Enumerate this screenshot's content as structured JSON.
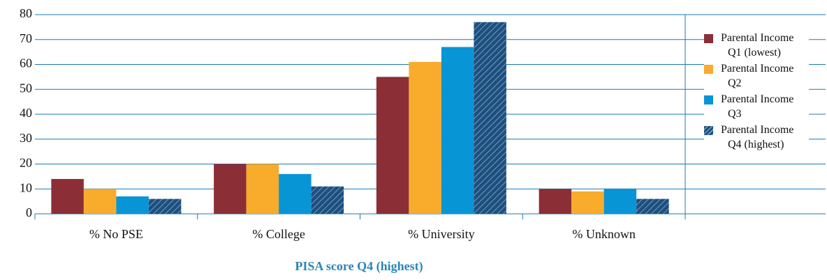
{
  "chart_data": {
    "type": "bar",
    "title": "PISA score Q4 (highest)",
    "categories": [
      "% No PSE",
      "% College",
      "% University",
      "% Unknown"
    ],
    "series": [
      {
        "name": "Parental Income Q1 (lowest)",
        "color": "#8b2e36",
        "values": [
          14,
          20,
          55,
          10
        ]
      },
      {
        "name": "Parental Income Q2",
        "color": "#f9ab2b",
        "values": [
          10,
          20,
          61,
          9
        ]
      },
      {
        "name": "Parental Income Q3",
        "color": "#0895d6",
        "values": [
          7,
          16,
          67,
          10
        ]
      },
      {
        "name": "Parental Income Q4 (highest)",
        "color": "#1f4f7c",
        "pattern": "hatch",
        "values": [
          6,
          11,
          77,
          6
        ]
      }
    ],
    "ylim": [
      0,
      80
    ],
    "yticks": [
      0,
      10,
      20,
      30,
      40,
      50,
      60,
      70,
      80
    ],
    "grid": true,
    "legend": "right"
  }
}
